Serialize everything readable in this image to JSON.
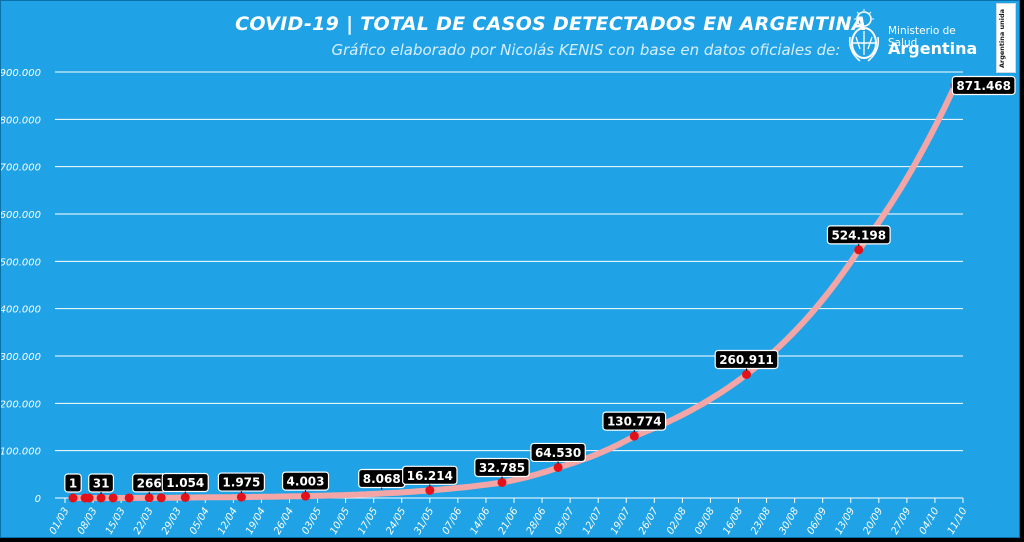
{
  "header": {
    "title": "COVID-19  |  TOTAL DE CASOS DETECTADOS EN ARGENTINA",
    "subtitle": "Gráfico elaborado por Nicolás KENIS con base en datos oficiales de:"
  },
  "logo": {
    "ministry": "Ministerio de Salud",
    "country": "Argentina",
    "side_tag": "Argentina unida"
  },
  "colors": {
    "background": "#1fa3e6",
    "curve": "#f4a6a6",
    "point": "#e3111a",
    "label_bg": "#000000",
    "grid": "#ffffff"
  },
  "chart_data": {
    "type": "line",
    "title": "COVID-19  |  TOTAL DE CASOS DETECTADOS EN ARGENTINA",
    "xlabel": "",
    "ylabel": "",
    "ylim": [
      0,
      900000
    ],
    "y_ticks": [
      {
        "value": 0,
        "label": "0"
      },
      {
        "value": 100000,
        "label": "100.000"
      },
      {
        "value": 200000,
        "label": "200.000"
      },
      {
        "value": 300000,
        "label": "300.000"
      },
      {
        "value": 400000,
        "label": "400.000"
      },
      {
        "value": 500000,
        "label": "500.000"
      },
      {
        "value": 600000,
        "label": "600.000"
      },
      {
        "value": 700000,
        "label": "700.000"
      },
      {
        "value": 800000,
        "label": "800.000"
      },
      {
        "value": 900000,
        "label": "900.000"
      }
    ],
    "x_ticks": [
      "01/03",
      "08/03",
      "15/03",
      "22/03",
      "29/03",
      "05/04",
      "12/04",
      "19/04",
      "26/04",
      "03/05",
      "10/05",
      "17/05",
      "24/05",
      "31/05",
      "07/06",
      "14/06",
      "21/06",
      "28/06",
      "05/07",
      "12/07",
      "19/07",
      "26/07",
      "02/08",
      "09/08",
      "16/08",
      "23/08",
      "30/08",
      "06/09",
      "13/09",
      "20/09",
      "27/09",
      "04/10",
      "11/10"
    ],
    "grid": true,
    "legend": "none",
    "series": [
      {
        "x": [
          "03/03",
          "06/03",
          "07/03",
          "10/03",
          "13/03",
          "17/03",
          "22/03",
          "25/03",
          "31/03",
          "14/04",
          "30/04",
          "31/05",
          "18/06",
          "02/07",
          "21/07",
          "18/08",
          "15/09",
          "09/10"
        ],
        "y": [
          1,
          2,
          8,
          31,
          34,
          65,
          266,
          387,
          1054,
          1975,
          4003,
          16214,
          32785,
          64530,
          130774,
          260911,
          524198,
          871468
        ]
      }
    ],
    "data_labels": [
      {
        "x": "03/03",
        "text": "1"
      },
      {
        "x": "10/03",
        "text": "31"
      },
      {
        "x": "22/03",
        "text": "266"
      },
      {
        "x": "31/03",
        "text": "1.054"
      },
      {
        "x": "14/04",
        "text": "1.975"
      },
      {
        "x": "30/04",
        "text": "4.003"
      },
      {
        "x": "19/05",
        "text": "8.068"
      },
      {
        "x": "31/05",
        "text": "16.214"
      },
      {
        "x": "18/06",
        "text": "32.785"
      },
      {
        "x": "02/07",
        "text": "64.530"
      },
      {
        "x": "21/07",
        "text": "130.774"
      },
      {
        "x": "18/08",
        "text": "260.911"
      },
      {
        "x": "15/09",
        "text": "524.198"
      },
      {
        "x": "09/10",
        "text": "871.468"
      }
    ]
  }
}
